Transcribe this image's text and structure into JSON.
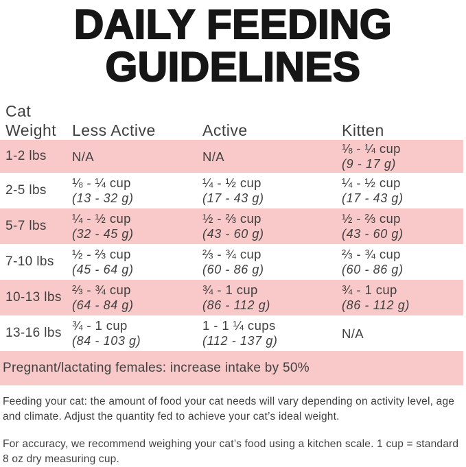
{
  "colors": {
    "pink": "#f9c9c9",
    "text": "#3f3f3f",
    "title": "#161616"
  },
  "title": {
    "line1": "DAILY FEEDING",
    "line2": "GUIDELINES"
  },
  "table": {
    "headers": {
      "weight": "Cat\nWeight",
      "less_active": "Less Active",
      "active": "Active",
      "kitten": "Kitten"
    },
    "rows": [
      {
        "weight": "1-2 lbs",
        "less_active_cups": "N/A",
        "less_active_grams": "",
        "active_cups": "N/A",
        "active_grams": "",
        "kitten_cups": "⅛ - ¼ cup",
        "kitten_grams": "(9 - 17 g)"
      },
      {
        "weight": "2-5 lbs",
        "less_active_cups": "⅛ - ¼ cup",
        "less_active_grams": "(13 - 32 g)",
        "active_cups": "¼ - ½ cup",
        "active_grams": "(17 - 43 g)",
        "kitten_cups": "¼ - ½ cup",
        "kitten_grams": "(17 - 43 g)"
      },
      {
        "weight": "5-7 lbs",
        "less_active_cups": "¼ - ½ cup",
        "less_active_grams": "(32 - 45 g)",
        "active_cups": "½ - ⅔ cup",
        "active_grams": "(43 - 60 g)",
        "kitten_cups": "½ - ⅔ cup",
        "kitten_grams": "(43 - 60 g)"
      },
      {
        "weight": "7-10 lbs",
        "less_active_cups": "½ - ⅔ cup",
        "less_active_grams": "(45 - 64 g)",
        "active_cups": "⅔ - ¾ cup",
        "active_grams": "(60 - 86 g)",
        "kitten_cups": "⅔ - ¾ cup",
        "kitten_grams": "(60 - 86 g)"
      },
      {
        "weight": "10-13 lbs",
        "less_active_cups": "⅔ - ¾ cup",
        "less_active_grams": "(64 - 84 g)",
        "active_cups": "¾ - 1 cup",
        "active_grams": "(86 - 112 g)",
        "kitten_cups": "¾ - 1 cup",
        "kitten_grams": "(86 - 112 g)"
      },
      {
        "weight": "13-16 lbs",
        "less_active_cups": "¾ - 1 cup",
        "less_active_grams": "(84 - 103 g)",
        "active_cups": "1 - 1 ¼ cups",
        "active_grams": "(112 - 137 g)",
        "kitten_cups": "N/A",
        "kitten_grams": ""
      }
    ],
    "pregnant_note": "Pregnant/lactating females: increase intake by 50%"
  },
  "notes": {
    "feeding": "Feeding your cat: the amount of food your cat needs will vary depending on activity level, age and climate. Adjust the quantity fed to achieve your cat’s ideal weight.",
    "accuracy": "For accuracy, we recommend weighing your cat’s food using a kitchen scale. 1 cup = standard 8 oz dry measuring cup."
  }
}
